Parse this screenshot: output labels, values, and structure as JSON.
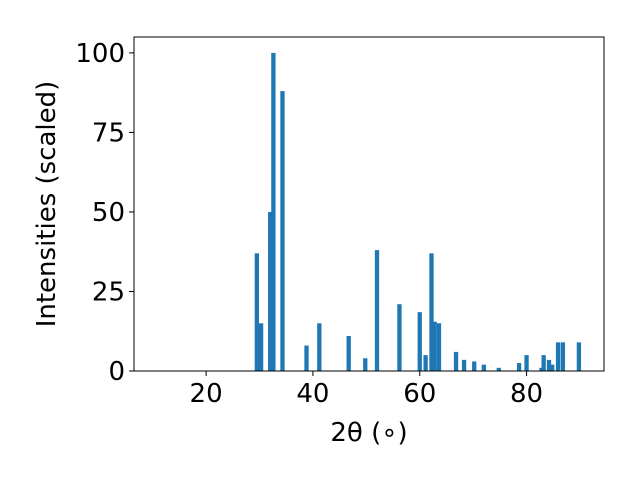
{
  "chart_data": {
    "type": "bar",
    "title": "",
    "xlabel": "2θ (∘)",
    "ylabel": "Intensities (scaled)",
    "xlim": [
      6.5,
      94.5
    ],
    "ylim": [
      0,
      105
    ],
    "xticks": [
      20,
      40,
      60,
      80
    ],
    "yticks": [
      0,
      25,
      50,
      75,
      100
    ],
    "grid": false,
    "color": "#1f77b4",
    "bars": [
      {
        "x": 29.5,
        "y": 37
      },
      {
        "x": 30.3,
        "y": 15
      },
      {
        "x": 32.0,
        "y": 50
      },
      {
        "x": 32.6,
        "y": 100
      },
      {
        "x": 34.3,
        "y": 88
      },
      {
        "x": 38.8,
        "y": 8
      },
      {
        "x": 41.2,
        "y": 15
      },
      {
        "x": 46.7,
        "y": 11
      },
      {
        "x": 49.8,
        "y": 4
      },
      {
        "x": 52.0,
        "y": 38
      },
      {
        "x": 56.2,
        "y": 21
      },
      {
        "x": 60.0,
        "y": 18.5
      },
      {
        "x": 61.1,
        "y": 5
      },
      {
        "x": 62.2,
        "y": 37
      },
      {
        "x": 62.8,
        "y": 15.5
      },
      {
        "x": 63.6,
        "y": 15
      },
      {
        "x": 66.8,
        "y": 6
      },
      {
        "x": 68.3,
        "y": 3.5
      },
      {
        "x": 70.2,
        "y": 3
      },
      {
        "x": 72.0,
        "y": 2
      },
      {
        "x": 74.8,
        "y": 1
      },
      {
        "x": 78.6,
        "y": 2.5
      },
      {
        "x": 80.0,
        "y": 5
      },
      {
        "x": 82.8,
        "y": 1
      },
      {
        "x": 83.2,
        "y": 5
      },
      {
        "x": 84.2,
        "y": 3.5
      },
      {
        "x": 84.8,
        "y": 2
      },
      {
        "x": 85.9,
        "y": 9
      },
      {
        "x": 86.8,
        "y": 9
      },
      {
        "x": 89.8,
        "y": 9
      }
    ]
  }
}
